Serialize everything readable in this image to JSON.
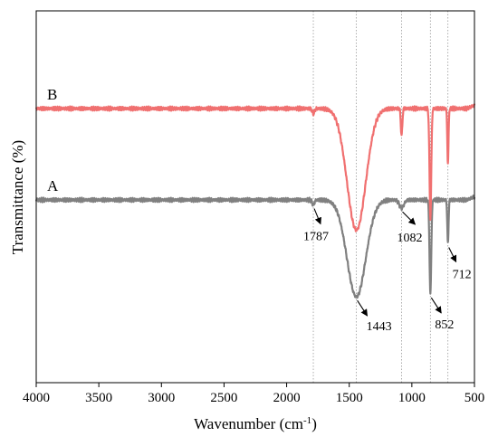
{
  "chart_data": {
    "type": "line",
    "xlabel": "Wavenumber (cm",
    "xlabel_sup": "-1",
    "xlabel_suffix": ")",
    "ylabel": "Transmittance (%)",
    "xlim": [
      4000,
      500
    ],
    "x_reversed": true,
    "xticks": [
      4000,
      3500,
      3000,
      2500,
      2000,
      1500,
      1000,
      500
    ],
    "y_ticks_shown": false,
    "grid": false,
    "reference_lines": [
      1787,
      1443,
      1082,
      852,
      712
    ],
    "series": [
      {
        "name": "A",
        "color": "#808080",
        "baseline": 0.0,
        "peaks": [
          {
            "x": 1787,
            "depth": 0.055,
            "width": 9
          },
          {
            "x": 1443,
            "depth": 1.06,
            "width": 75
          },
          {
            "x": 1082,
            "depth": 0.09,
            "width": 18
          },
          {
            "x": 852,
            "depth": 1.03,
            "width": 7
          },
          {
            "x": 712,
            "depth": 0.48,
            "width": 5
          }
        ]
      },
      {
        "name": "B",
        "color": "#F07070",
        "baseline": 1.0,
        "peaks": [
          {
            "x": 1787,
            "depth": 0.055,
            "width": 9
          },
          {
            "x": 1443,
            "depth": 1.33,
            "width": 75
          },
          {
            "x": 1082,
            "depth": 0.3,
            "width": 6
          },
          {
            "x": 852,
            "depth": 1.2,
            "width": 7
          },
          {
            "x": 712,
            "depth": 0.6,
            "width": 5
          }
        ]
      }
    ],
    "annotations": [
      {
        "text": "1787",
        "target_x": 1787
      },
      {
        "text": "1443",
        "target_x": 1443
      },
      {
        "text": "1082",
        "target_x": 1082
      },
      {
        "text": "852",
        "target_x": 852
      },
      {
        "text": "712",
        "target_x": 712
      }
    ]
  }
}
